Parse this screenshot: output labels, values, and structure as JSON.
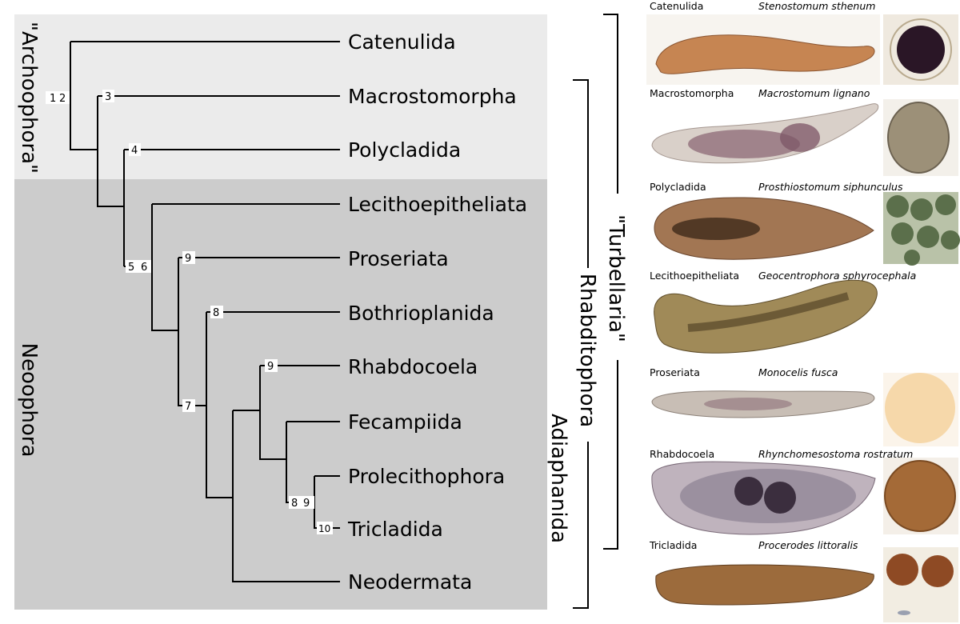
{
  "clades": {
    "archoophora": "\"Archoophora\"",
    "neoophora": "Neoophora",
    "turbellaria": "\"Turbellaria\"",
    "rhabditophora": "Rhabditophora",
    "adiaphanida": "Adiaphanida"
  },
  "taxa": [
    "Catenulida",
    "Macrostomorpha",
    "Polycladida",
    "Lecithoepitheliata",
    "Proseriata",
    "Bothrioplanida",
    "Rhabdocoela",
    "Fecampiida",
    "Prolecithophora",
    "Tricladida",
    "Neodermata"
  ],
  "node_labels": {
    "root": "1",
    "root2": "2",
    "macro": "3",
    "poly": "4",
    "n5": "5",
    "n6": "6",
    "pros": "9",
    "both": "8",
    "n7": "7",
    "rhab": "9",
    "prol8": "8",
    "prol9": "9",
    "tric": "10"
  },
  "photos": [
    {
      "order": "Catenulida",
      "species": "Stenostomum sthenum",
      "body_color": "#c68552",
      "egg_color": "#2a1626",
      "egg_bg": "#efe9df"
    },
    {
      "order": "Macrostomorpha",
      "species": "Macrostomum lignano",
      "body_color": "#d9d0c9",
      "egg_color": "#9c9078",
      "egg_bg": "#f3f0ea"
    },
    {
      "order": "Polycladida",
      "species": "Prosthiostomum siphunculus",
      "body_color": "#a27653",
      "egg_color": "#5b6f4b",
      "egg_bg": "#b9c2a8"
    },
    {
      "order": "Lecithoepitheliata",
      "species": "Geocentrophora sphyrocephala",
      "body_color": "#a08a58",
      "egg_color": "",
      "egg_bg": ""
    },
    {
      "order": "Proseriata",
      "species": "Monocelis fusca",
      "body_color": "#c8beb5",
      "egg_color": "#f6d8aa",
      "egg_bg": "#fbf4ea"
    },
    {
      "order": "Rhabdocoela",
      "species": "Rhynchomesostoma rostratum",
      "body_color": "#7e7286",
      "egg_color": "#a46a37",
      "egg_bg": "#f4efe8"
    },
    {
      "order": "Tricladida",
      "species": "Procerodes littoralis",
      "body_color": "#9c6b3c",
      "egg_color": "#8e4a24",
      "egg_bg": "#f2ede2"
    }
  ],
  "colors": {
    "archoophora_bg": "#ebebeb",
    "neoophora_bg": "#cccccc",
    "line": "#000000"
  }
}
